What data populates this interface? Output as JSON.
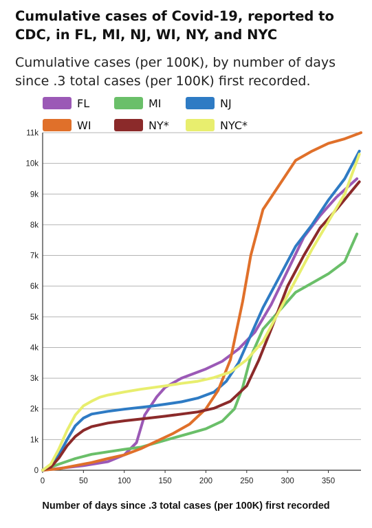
{
  "chart_data": {
    "type": "line",
    "title": "Cumulative cases of Covid-19, reported to CDC, in FL, MI, NJ, WI, NY, and NYC",
    "subtitle": "Cumulative cases (per 100K), by number of days since .3 total cases (per 100K) first recorded.",
    "xlabel": "Number of days since .3 total cases (per 100K) first recorded",
    "ylabel": "",
    "xlim": [
      0,
      390
    ],
    "ylim": [
      0,
      11000
    ],
    "x_ticks": [
      0,
      50,
      100,
      150,
      200,
      250,
      300,
      350
    ],
    "y_ticks": [
      {
        "value": 0,
        "label": "0"
      },
      {
        "value": 1000,
        "label": "1k"
      },
      {
        "value": 2000,
        "label": "2k"
      },
      {
        "value": 3000,
        "label": "3k"
      },
      {
        "value": 4000,
        "label": "4k"
      },
      {
        "value": 5000,
        "label": "5k"
      },
      {
        "value": 6000,
        "label": "6k"
      },
      {
        "value": 7000,
        "label": "7k"
      },
      {
        "value": 8000,
        "label": "8k"
      },
      {
        "value": 9000,
        "label": "9k"
      },
      {
        "value": 10000,
        "label": "10k"
      },
      {
        "value": 11000,
        "label": "11k"
      }
    ],
    "grid": "horizontal",
    "legend_position": "top",
    "series": [
      {
        "name": "FL",
        "color": "#9b59b6",
        "x": [
          0,
          20,
          50,
          80,
          100,
          115,
          125,
          140,
          150,
          170,
          200,
          220,
          240,
          260,
          280,
          300,
          320,
          340,
          360,
          385
        ],
        "y": [
          0,
          60,
          150,
          280,
          500,
          900,
          1800,
          2400,
          2700,
          3000,
          3300,
          3550,
          3950,
          4500,
          5400,
          6500,
          7600,
          8300,
          8900,
          9500
        ]
      },
      {
        "name": "MI",
        "color": "#6abf69",
        "x": [
          0,
          10,
          20,
          40,
          60,
          80,
          100,
          120,
          140,
          160,
          180,
          200,
          220,
          235,
          245,
          255,
          270,
          290,
          310,
          330,
          350,
          370,
          385
        ],
        "y": [
          0,
          100,
          200,
          380,
          520,
          600,
          680,
          750,
          900,
          1050,
          1200,
          1350,
          1600,
          2000,
          2700,
          3700,
          4600,
          5200,
          5800,
          6100,
          6400,
          6800,
          7700
        ]
      },
      {
        "name": "NJ",
        "color": "#2e7bc4",
        "x": [
          0,
          10,
          20,
          30,
          40,
          50,
          60,
          80,
          100,
          130,
          150,
          170,
          190,
          210,
          225,
          240,
          255,
          270,
          290,
          310,
          330,
          350,
          370,
          388
        ],
        "y": [
          0,
          100,
          500,
          1000,
          1450,
          1700,
          1830,
          1920,
          1990,
          2080,
          2150,
          2230,
          2350,
          2550,
          2900,
          3500,
          4400,
          5300,
          6300,
          7300,
          8000,
          8800,
          9500,
          10400
        ]
      },
      {
        "name": "WI",
        "color": "#e0702a",
        "x": [
          0,
          20,
          40,
          60,
          80,
          100,
          120,
          140,
          160,
          180,
          200,
          215,
          230,
          245,
          255,
          270,
          290,
          310,
          330,
          350,
          370,
          390
        ],
        "y": [
          0,
          50,
          150,
          250,
          380,
          500,
          700,
          950,
          1200,
          1500,
          2000,
          2600,
          3600,
          5500,
          7000,
          8500,
          9300,
          10100,
          10400,
          10650,
          10800,
          11000
        ]
      },
      {
        "name": "NY*",
        "color": "#8b2a2a",
        "x": [
          0,
          10,
          20,
          30,
          40,
          50,
          60,
          80,
          100,
          120,
          150,
          170,
          190,
          210,
          230,
          250,
          265,
          280,
          300,
          320,
          340,
          360,
          388
        ],
        "y": [
          0,
          100,
          400,
          800,
          1100,
          1300,
          1420,
          1540,
          1610,
          1670,
          1760,
          1830,
          1900,
          2020,
          2250,
          2750,
          3600,
          4600,
          6000,
          7000,
          7900,
          8500,
          9400
        ]
      },
      {
        "name": "NYC*",
        "color": "#e8ee6e",
        "x": [
          0,
          10,
          20,
          30,
          40,
          50,
          60,
          70,
          80,
          100,
          120,
          150,
          170,
          190,
          210,
          230,
          250,
          270,
          290,
          310,
          330,
          350,
          370,
          388
        ],
        "y": [
          0,
          200,
          700,
          1300,
          1800,
          2100,
          2250,
          2380,
          2450,
          2550,
          2640,
          2750,
          2830,
          2900,
          3020,
          3200,
          3600,
          4200,
          5200,
          6200,
          7200,
          8100,
          9000,
          10300
        ]
      }
    ]
  }
}
